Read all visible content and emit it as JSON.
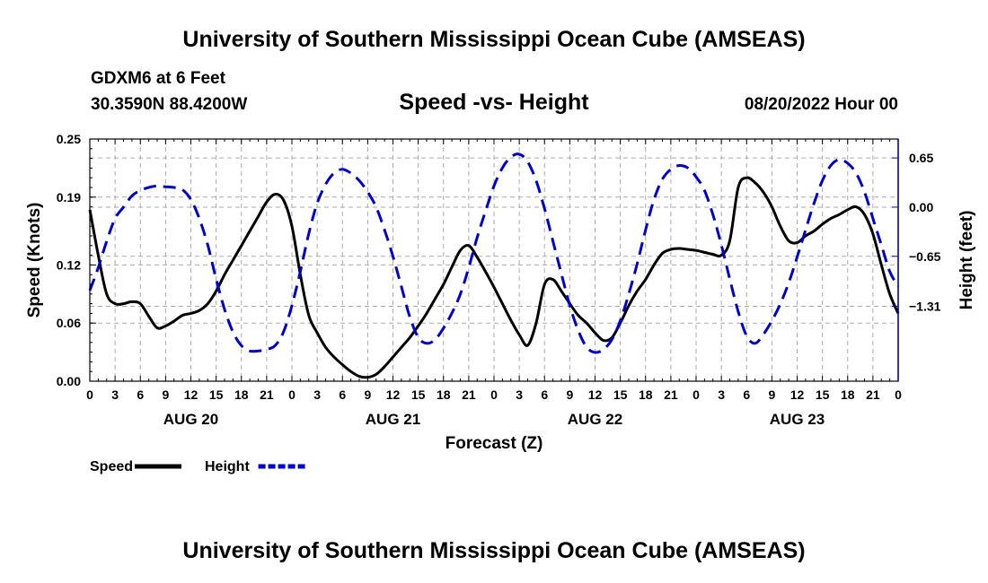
{
  "header": {
    "title": "University of Southern Mississippi Ocean Cube (AMSEAS)",
    "station": "GDXM6 at 6 Feet",
    "location": "30.3590N  88.4200W",
    "subtitle": "Speed -vs- Height",
    "datetime": "08/20/2022 Hour 00"
  },
  "footer": {
    "title": "University of Southern Mississippi Ocean Cube (AMSEAS)"
  },
  "chart_data": {
    "type": "line",
    "title": "Speed -vs- Height",
    "xlabel": "Forecast (Z)",
    "ylabel": "Speed (Knots)",
    "y2label": "Height (feet)",
    "xlim": [
      0,
      96
    ],
    "ylim": [
      0,
      0.25
    ],
    "y2lim": [
      -2.3,
      0.9
    ],
    "x_ticks": [
      0,
      3,
      6,
      9,
      12,
      15,
      18,
      21,
      24,
      27,
      30,
      33,
      36,
      39,
      42,
      45,
      48,
      51,
      54,
      57,
      60,
      63,
      66,
      69,
      72,
      75,
      78,
      81,
      84,
      87,
      90,
      93,
      96
    ],
    "x_tick_labels": [
      "0",
      "3",
      "6",
      "9",
      "12",
      "15",
      "18",
      "21",
      "0",
      "3",
      "6",
      "9",
      "12",
      "15",
      "18",
      "21",
      "0",
      "3",
      "6",
      "9",
      "12",
      "15",
      "18",
      "21",
      "0",
      "3",
      "6",
      "9",
      "12",
      "15",
      "18",
      "21",
      "0"
    ],
    "day_labels": [
      {
        "x": 12,
        "label": "AUG 20"
      },
      {
        "x": 36,
        "label": "AUG 21"
      },
      {
        "x": 60,
        "label": "AUG 22"
      },
      {
        "x": 84,
        "label": "AUG 23"
      }
    ],
    "y_ticks": [
      0.0,
      0.06,
      0.12,
      0.19,
      0.25
    ],
    "y_tick_labels": [
      "0.00",
      "0.06",
      "0.12",
      "0.19",
      "0.25"
    ],
    "y2_ticks": [
      0.65,
      0.0,
      -0.65,
      -1.31
    ],
    "y2_tick_labels": [
      "0.65",
      "0.00",
      "−0.65",
      "−1.31"
    ],
    "legend": [
      {
        "name": "Speed",
        "color": "#000000",
        "style": "solid"
      },
      {
        "name": "Height",
        "color": "#0000cc",
        "style": "dashed"
      }
    ],
    "series": [
      {
        "name": "Speed",
        "axis": "left",
        "color": "#000000",
        "dash": "solid",
        "x": [
          0,
          1,
          2,
          3,
          4,
          5,
          6,
          7,
          8,
          9,
          10,
          11,
          12,
          13,
          14,
          15,
          16,
          17,
          18,
          19,
          20,
          21,
          22,
          23,
          24,
          25,
          26,
          27,
          28,
          29,
          30,
          31,
          32,
          33,
          34,
          35,
          36,
          37,
          38,
          39,
          40,
          41,
          42,
          43,
          44,
          45,
          46,
          47,
          48,
          49,
          50,
          51,
          52,
          53,
          54,
          55,
          56,
          57,
          58,
          59,
          60,
          61,
          62,
          63,
          64,
          65,
          66,
          67,
          68,
          69,
          70,
          71,
          72,
          73,
          74,
          75,
          76,
          77,
          78,
          79,
          80,
          81,
          82,
          83,
          84,
          85,
          86,
          87,
          88,
          89,
          90,
          91,
          92,
          93,
          94,
          95,
          96
        ],
        "values": [
          0.177,
          0.13,
          0.09,
          0.08,
          0.08,
          0.082,
          0.08,
          0.067,
          0.055,
          0.057,
          0.062,
          0.068,
          0.07,
          0.073,
          0.08,
          0.093,
          0.11,
          0.125,
          0.14,
          0.155,
          0.17,
          0.185,
          0.193,
          0.187,
          0.16,
          0.11,
          0.068,
          0.05,
          0.035,
          0.025,
          0.017,
          0.01,
          0.005,
          0.004,
          0.007,
          0.015,
          0.025,
          0.035,
          0.045,
          0.057,
          0.07,
          0.085,
          0.1,
          0.118,
          0.135,
          0.14,
          0.128,
          0.113,
          0.097,
          0.08,
          0.063,
          0.048,
          0.037,
          0.06,
          0.1,
          0.105,
          0.093,
          0.08,
          0.068,
          0.06,
          0.05,
          0.042,
          0.045,
          0.06,
          0.078,
          0.093,
          0.105,
          0.12,
          0.132,
          0.136,
          0.137,
          0.136,
          0.135,
          0.133,
          0.131,
          0.13,
          0.145,
          0.2,
          0.21,
          0.205,
          0.195,
          0.18,
          0.16,
          0.145,
          0.143,
          0.15,
          0.155,
          0.162,
          0.168,
          0.172,
          0.177,
          0.18,
          0.172,
          0.152,
          0.12,
          0.09,
          0.07
        ]
      },
      {
        "name": "Height",
        "axis": "right",
        "color": "#0000cc",
        "dash": "dashed",
        "x": [
          0,
          1,
          2,
          3,
          4,
          5,
          6,
          7,
          8,
          9,
          10,
          11,
          12,
          13,
          14,
          15,
          16,
          17,
          18,
          19,
          20,
          21,
          22,
          23,
          24,
          25,
          26,
          27,
          28,
          29,
          30,
          31,
          32,
          33,
          34,
          35,
          36,
          37,
          38,
          39,
          40,
          41,
          42,
          43,
          44,
          45,
          46,
          47,
          48,
          49,
          50,
          51,
          52,
          53,
          54,
          55,
          56,
          57,
          58,
          59,
          60,
          61,
          62,
          63,
          64,
          65,
          66,
          67,
          68,
          69,
          70,
          71,
          72,
          73,
          74,
          75,
          76,
          77,
          78,
          79,
          80,
          81,
          82,
          83,
          84,
          85,
          86,
          87,
          88,
          89,
          90,
          91,
          92,
          93,
          94,
          95,
          96
        ],
        "values": [
          -1.1,
          -0.8,
          -0.45,
          -0.15,
          0.0,
          0.15,
          0.22,
          0.26,
          0.28,
          0.27,
          0.26,
          0.23,
          0.1,
          -0.15,
          -0.5,
          -0.95,
          -1.35,
          -1.65,
          -1.83,
          -1.9,
          -1.9,
          -1.88,
          -1.83,
          -1.65,
          -1.3,
          -0.85,
          -0.35,
          0.05,
          0.3,
          0.45,
          0.5,
          0.45,
          0.35,
          0.2,
          0.0,
          -0.3,
          -0.65,
          -1.05,
          -1.45,
          -1.72,
          -1.8,
          -1.75,
          -1.6,
          -1.4,
          -1.15,
          -0.8,
          -0.4,
          -0.05,
          0.28,
          0.52,
          0.66,
          0.7,
          0.6,
          0.35,
          -0.02,
          -0.45,
          -0.88,
          -1.3,
          -1.63,
          -1.85,
          -1.92,
          -1.88,
          -1.75,
          -1.5,
          -1.15,
          -0.75,
          -0.3,
          0.1,
          0.37,
          0.5,
          0.55,
          0.52,
          0.4,
          0.22,
          -0.1,
          -0.5,
          -0.95,
          -1.38,
          -1.7,
          -1.8,
          -1.68,
          -1.5,
          -1.28,
          -1.0,
          -0.66,
          -0.3,
          0.05,
          0.35,
          0.55,
          0.63,
          0.58,
          0.45,
          0.2,
          -0.15,
          -0.5,
          -0.85,
          -1.05
        ]
      }
    ]
  }
}
